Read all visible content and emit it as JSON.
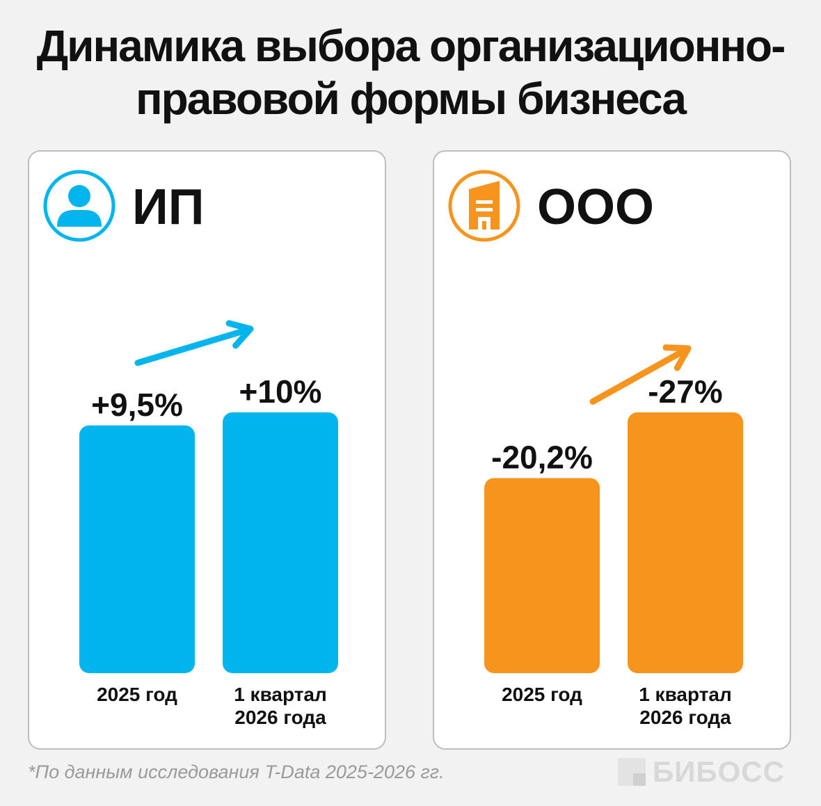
{
  "title": {
    "line1": "Динамика выбора организационно-",
    "line2": "правовой формы бизнеса"
  },
  "colors": {
    "ip": "#00b4ec",
    "ooo": "#f7941d"
  },
  "panels": {
    "ip": {
      "name": "ИП",
      "icon": "person-icon",
      "trend_arrow": "up"
    },
    "ooo": {
      "name": "ООО",
      "icon": "building-icon",
      "trend_arrow": "down"
    }
  },
  "chart_data": [
    {
      "type": "bar",
      "title": "ИП",
      "categories": [
        "2025 год",
        "1 квартал 2026 года"
      ],
      "category_lines": [
        [
          "2025 год"
        ],
        [
          "1 квартал",
          "2026 года"
        ]
      ],
      "values": [
        9.5,
        10
      ],
      "value_labels": [
        "+9,5%",
        "+10%"
      ],
      "unit": "%",
      "color": "#00b4ec"
    },
    {
      "type": "bar",
      "title": "ООО",
      "categories": [
        "2025 год",
        "1 квартал 2026 года"
      ],
      "category_lines": [
        [
          "2025 год"
        ],
        [
          "1 квартал",
          "2026 года"
        ]
      ],
      "values": [
        -20.2,
        -27
      ],
      "value_labels": [
        "-20,2%",
        "-27%"
      ],
      "unit": "%",
      "color": "#f7941d"
    }
  ],
  "footnote": "*По данным исследования T-Data 2025-2026 гг.",
  "brand": "БИБОСС"
}
